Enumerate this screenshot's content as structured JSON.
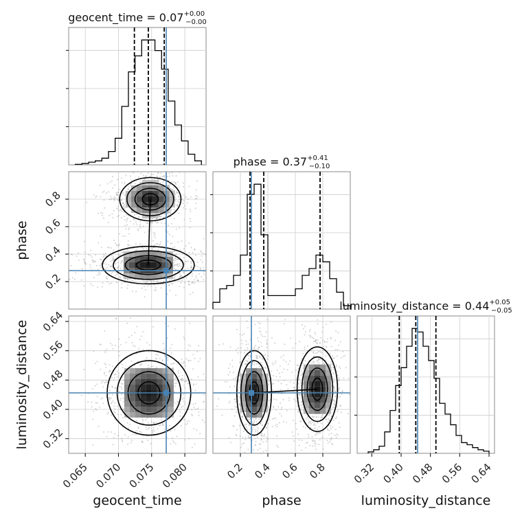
{
  "chart_data": {
    "type": "corner",
    "parameters": [
      "geocent_time",
      "phase",
      "luminosity_distance"
    ],
    "truth_color": "#4682b4",
    "quantile_color": "#000000",
    "titles": [
      {
        "param": "geocent_time",
        "prefix": "geocent_time = 0.07",
        "upper": "+0.00",
        "lower": "−0.00"
      },
      {
        "param": "phase",
        "prefix": "phase = 0.37",
        "upper": "+0.41",
        "lower": "−0.10"
      },
      {
        "param": "luminosity_distance",
        "prefix": "luminosity_distance = 0.44",
        "upper": "+0.05",
        "lower": "−0.05"
      }
    ],
    "truths": {
      "geocent_time": 0.0772,
      "phase": 0.28,
      "luminosity_distance": 0.445
    },
    "quantiles": {
      "geocent_time": [
        0.0724,
        0.0745,
        0.0769
      ],
      "phase": [
        0.27,
        0.37,
        0.78
      ],
      "luminosity_distance": [
        0.395,
        0.44,
        0.495
      ]
    },
    "ranges": {
      "geocent_time": [
        0.0625,
        0.0832
      ],
      "phase": [
        0.0,
        1.0
      ],
      "luminosity_distance": [
        0.28,
        0.655
      ]
    },
    "ticks": {
      "geocent_time": [
        "0.065",
        "0.070",
        "0.075",
        "0.080"
      ],
      "phase": [
        "0.2",
        "0.4",
        "0.6",
        "0.8"
      ],
      "luminosity_distance": [
        "0.32",
        "0.40",
        "0.48",
        "0.56",
        "0.64"
      ]
    },
    "histograms": {
      "geocent_time": {
        "edges": [
          0.0635,
          0.0645,
          0.0655,
          0.0665,
          0.0675,
          0.0685,
          0.0695,
          0.0705,
          0.0715,
          0.0725,
          0.0735,
          0.0745,
          0.0755,
          0.0765,
          0.0775,
          0.0785,
          0.0795,
          0.0805,
          0.0815,
          0.0825
        ],
        "counts": [
          0.2,
          0.5,
          1.0,
          1.5,
          2.5,
          5.0,
          10.0,
          22.0,
          35.0,
          41.0,
          47.0,
          47.0,
          43.0,
          36.0,
          24.0,
          15.0,
          9.0,
          4.0,
          1.5
        ]
      },
      "phase": {
        "edges": [
          0.0,
          0.05,
          0.1,
          0.15,
          0.2,
          0.25,
          0.3,
          0.35,
          0.4,
          0.45,
          0.5,
          0.55,
          0.6,
          0.65,
          0.7,
          0.75,
          0.8,
          0.85,
          0.9,
          0.95,
          1.0
        ],
        "counts": [
          1.0,
          3.0,
          3.5,
          5.0,
          8.0,
          17.0,
          18.5,
          11.0,
          2.0,
          2.0,
          2.0,
          2.0,
          3.0,
          5.0,
          6.0,
          8.0,
          7.0,
          4.5,
          2.5,
          0.5
        ]
      },
      "luminosity_distance": {
        "edges": [
          0.31,
          0.325,
          0.34,
          0.355,
          0.37,
          0.385,
          0.4,
          0.415,
          0.43,
          0.445,
          0.46,
          0.475,
          0.49,
          0.505,
          0.52,
          0.535,
          0.55,
          0.565,
          0.58,
          0.595,
          0.61,
          0.625,
          0.64
        ],
        "counts": [
          0.2,
          0.5,
          1.0,
          3.0,
          6.0,
          9.5,
          12.0,
          15.0,
          17.5,
          17.0,
          15.0,
          13.0,
          10.5,
          7.0,
          5.5,
          4.0,
          2.5,
          1.5,
          1.2,
          0.8,
          0.5,
          0.3
        ]
      }
    },
    "blobs_2d": [
      {
        "x": "geocent_time",
        "y": "phase",
        "centers": [
          [
            0.0745,
            0.32
          ],
          [
            0.0748,
            0.8
          ]
        ],
        "scales": [
          [
            0.0033,
            0.065
          ],
          [
            0.0022,
            0.075
          ]
        ]
      },
      {
        "x": "geocent_time",
        "y": "luminosity_distance",
        "centers": [
          [
            0.0746,
            0.445
          ]
        ],
        "scales": [
          [
            0.003,
            0.055
          ]
        ]
      },
      {
        "x": "phase",
        "y": "luminosity_distance",
        "centers": [
          [
            0.3,
            0.445
          ],
          [
            0.76,
            0.455
          ]
        ],
        "scales": [
          [
            0.06,
            0.055
          ],
          [
            0.07,
            0.055
          ]
        ]
      }
    ]
  }
}
